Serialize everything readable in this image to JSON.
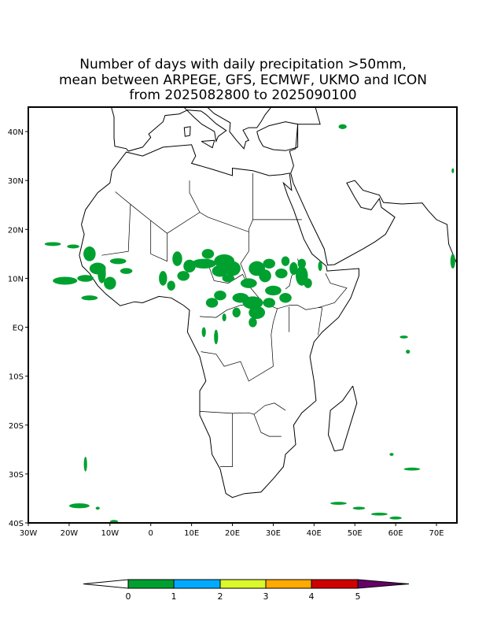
{
  "title": {
    "line1": "Number of days with daily precipitation >50mm,",
    "line2": "mean between ARPEGE, GFS, ECMWF, UKMO and ICON",
    "line3": "from 2025082800 to 2025090100"
  },
  "map": {
    "lon_range": [
      -30,
      75
    ],
    "lat_range": [
      -40,
      45
    ],
    "lat_ticks": [
      {
        "v": 40,
        "label": "40N"
      },
      {
        "v": 30,
        "label": "30N"
      },
      {
        "v": 20,
        "label": "20N"
      },
      {
        "v": 10,
        "label": "10N"
      },
      {
        "v": 0,
        "label": "EQ"
      },
      {
        "v": -10,
        "label": "10S"
      },
      {
        "v": -20,
        "label": "20S"
      },
      {
        "v": -30,
        "label": "30S"
      },
      {
        "v": -40,
        "label": "40S"
      }
    ],
    "lon_ticks": [
      {
        "v": -30,
        "label": "30W"
      },
      {
        "v": -20,
        "label": "20W"
      },
      {
        "v": -10,
        "label": "10W"
      },
      {
        "v": 0,
        "label": "0"
      },
      {
        "v": 10,
        "label": "10E"
      },
      {
        "v": 20,
        "label": "20E"
      },
      {
        "v": 30,
        "label": "30E"
      },
      {
        "v": 40,
        "label": "40E"
      },
      {
        "v": 50,
        "label": "50E"
      },
      {
        "v": 60,
        "label": "60E"
      },
      {
        "v": 70,
        "label": "70E"
      }
    ]
  },
  "colorbar": {
    "levels": [
      "0",
      "1",
      "2",
      "3",
      "4",
      "5"
    ],
    "colors": [
      "#00a030",
      "#00aaff",
      "#daf82a",
      "#ffaa00",
      "#d00000"
    ],
    "under_color": "#ffffff",
    "over_color": "#660066"
  },
  "shade_color": "#00a030"
}
